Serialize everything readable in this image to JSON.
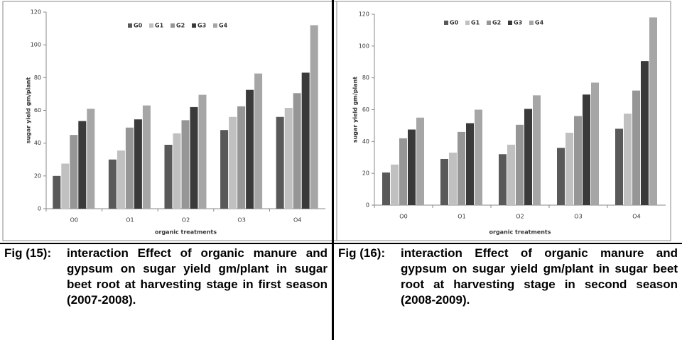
{
  "chart_data": [
    {
      "type": "bar",
      "x_label": "organic treatments",
      "y_label": "sugar yield gm/plant",
      "categories": [
        "O0",
        "O1",
        "O2",
        "O3",
        "O4"
      ],
      "ylim": [
        0,
        120
      ],
      "yticks": [
        0,
        20,
        40,
        60,
        80,
        100,
        120
      ],
      "series": [
        {
          "name": "G0",
          "color": "#595959",
          "values": [
            20,
            30,
            39,
            48,
            56
          ]
        },
        {
          "name": "G1",
          "color": "#c0c0c0",
          "values": [
            27.5,
            35.5,
            46,
            56,
            61.5
          ]
        },
        {
          "name": "G2",
          "color": "#969696",
          "values": [
            45,
            49.5,
            54,
            62.5,
            70.5
          ]
        },
        {
          "name": "G3",
          "color": "#3a3a3a",
          "values": [
            53.5,
            54.5,
            62,
            72.5,
            83
          ]
        },
        {
          "name": "G4",
          "color": "#a6a6a6",
          "values": [
            61,
            63,
            69.5,
            82.5,
            112
          ]
        }
      ]
    },
    {
      "type": "bar",
      "x_label": "organic treatments",
      "y_label": "sugar yield gm/plant",
      "categories": [
        "O0",
        "O1",
        "O2",
        "O3",
        "O4"
      ],
      "ylim": [
        0,
        120
      ],
      "yticks": [
        0,
        20,
        40,
        60,
        80,
        100,
        120
      ],
      "series": [
        {
          "name": "G0",
          "color": "#595959",
          "values": [
            20.5,
            29,
            32,
            36,
            48
          ]
        },
        {
          "name": "G1",
          "color": "#c0c0c0",
          "values": [
            25.5,
            33,
            38,
            45.5,
            57.5
          ]
        },
        {
          "name": "G2",
          "color": "#969696",
          "values": [
            42,
            46,
            50.5,
            56,
            72
          ]
        },
        {
          "name": "G3",
          "color": "#3a3a3a",
          "values": [
            47.5,
            51.5,
            60.5,
            69.5,
            90.5
          ]
        },
        {
          "name": "G4",
          "color": "#a6a6a6",
          "values": [
            55,
            60,
            69,
            77,
            118
          ]
        }
      ]
    }
  ],
  "captions": [
    {
      "label": "Fig (15):",
      "text": "interaction Effect of organic manure and gypsum on sugar yield gm/plant in sugar beet root at harvesting stage in first season (2007-2008)."
    },
    {
      "label": "Fig (16):",
      "text": "interaction Effect of organic manure and gypsum on sugar yield gm/plant in sugar beet root at harvesting stage in second season (2008-2009)."
    }
  ]
}
